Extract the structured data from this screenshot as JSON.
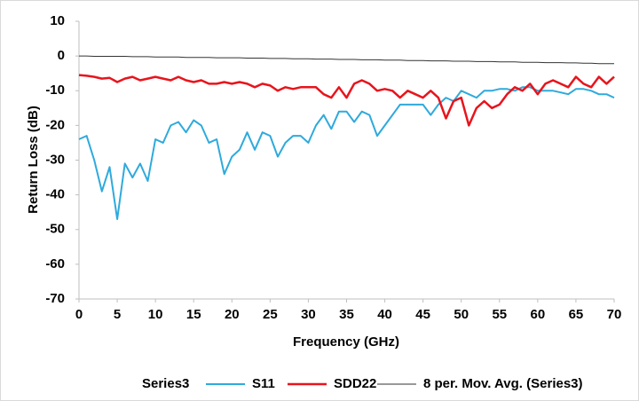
{
  "chart_data": {
    "type": "line",
    "xlabel": "Frequency (GHz)",
    "ylabel": "Return Loss (dB)",
    "x": [
      0,
      1,
      2,
      3,
      4,
      5,
      6,
      7,
      8,
      9,
      10,
      11,
      12,
      13,
      14,
      15,
      16,
      17,
      18,
      19,
      20,
      21,
      22,
      23,
      24,
      25,
      26,
      27,
      28,
      29,
      30,
      31,
      32,
      33,
      34,
      35,
      36,
      37,
      38,
      39,
      40,
      41,
      42,
      43,
      44,
      45,
      46,
      47,
      48,
      49,
      50,
      51,
      52,
      53,
      54,
      55,
      56,
      57,
      58,
      59,
      60,
      61,
      62,
      63,
      64,
      65,
      66,
      67,
      68,
      69,
      70
    ],
    "series": [
      {
        "name": "Series3",
        "color": "#ffffff",
        "width": 1,
        "values": [
          0,
          0.2,
          -0.3,
          0.1,
          -0.4,
          0.2,
          -0.2,
          -0.5,
          0.1,
          -0.3,
          -0.2,
          -0.6,
          0,
          -0.4,
          -0.3,
          -0.7,
          -0.2,
          -0.5,
          -0.6,
          -0.3,
          -0.8,
          -0.4,
          -0.6,
          -0.9,
          -0.5,
          -0.7,
          -1,
          -0.6,
          -0.8,
          -1.1,
          -0.7,
          -0.9,
          -1.2,
          -0.8,
          -1,
          -1.3,
          -0.9,
          -1.1,
          -1.4,
          -1,
          -1.2,
          -1.5,
          -1.1,
          -1.3,
          -1.6,
          -1.2,
          -1.4,
          -1.7,
          -1.3,
          -1.5,
          -1.8,
          -1.4,
          -1.6,
          -1.9,
          -1.5,
          -1.7,
          -2,
          -1.6,
          -1.8,
          -2.1,
          -1.7,
          -1.9,
          -2.2,
          -1.8,
          -2,
          -2.4,
          -1.9,
          -2.2,
          -2.6,
          -2,
          -2.3
        ]
      },
      {
        "name": "S11",
        "color": "#2eaadc",
        "width": 2,
        "values": [
          -24,
          -23,
          -30,
          -39,
          -32,
          -47,
          -31,
          -35,
          -31,
          -36,
          -24,
          -25,
          -20,
          -19,
          -22,
          -18.5,
          -20,
          -25,
          -24,
          -34,
          -29,
          -27,
          -22,
          -27,
          -22,
          -23,
          -29,
          -25,
          -23,
          -23,
          -25,
          -20,
          -17,
          -21,
          -16,
          -16,
          -19,
          -16,
          -17,
          -23,
          -20,
          -17,
          -14,
          -14,
          -14,
          -14,
          -17,
          -14,
          -12,
          -13,
          -10,
          -11,
          -12,
          -10,
          -10,
          -9.5,
          -9.5,
          -10,
          -9,
          -9,
          -10,
          -10,
          -10,
          -10.5,
          -11,
          -9.5,
          -9.5,
          -10,
          -11,
          -11,
          -12
        ]
      },
      {
        "name": "SDD22",
        "color": "#e8141c",
        "width": 2.5,
        "values": [
          -5.5,
          -5.7,
          -6,
          -6.5,
          -6.3,
          -7.5,
          -6.5,
          -6,
          -7,
          -6.5,
          -6,
          -6.5,
          -7,
          -6,
          -7,
          -7.5,
          -7,
          -8,
          -8,
          -7.5,
          -8,
          -7.5,
          -8,
          -9,
          -8,
          -8.5,
          -10,
          -9,
          -9.5,
          -9,
          -9,
          -9,
          -11,
          -12,
          -9,
          -12,
          -8,
          -7,
          -8,
          -10,
          -9.5,
          -10,
          -12,
          -10,
          -11,
          -12,
          -10,
          -12,
          -18,
          -13,
          -12,
          -20,
          -15,
          -13,
          -15,
          -14,
          -11,
          -9,
          -10,
          -8,
          -11,
          -8,
          -7,
          -8,
          -9,
          -6,
          -8,
          -9,
          -6,
          -8,
          -6
        ]
      },
      {
        "name": "8 per. Mov. Avg. (Series3)",
        "color": "#333333",
        "width": 1,
        "values": [
          0,
          0,
          -0.1,
          -0.1,
          -0.1,
          -0.1,
          -0.1,
          -0.2,
          -0.2,
          -0.2,
          -0.3,
          -0.3,
          -0.3,
          -0.3,
          -0.4,
          -0.4,
          -0.4,
          -0.4,
          -0.5,
          -0.5,
          -0.5,
          -0.5,
          -0.6,
          -0.6,
          -0.6,
          -0.7,
          -0.7,
          -0.7,
          -0.8,
          -0.8,
          -0.8,
          -0.9,
          -0.9,
          -0.9,
          -1,
          -1,
          -1,
          -1.1,
          -1.1,
          -1.1,
          -1.2,
          -1.2,
          -1.2,
          -1.3,
          -1.3,
          -1.3,
          -1.4,
          -1.4,
          -1.4,
          -1.5,
          -1.5,
          -1.5,
          -1.6,
          -1.6,
          -1.6,
          -1.7,
          -1.7,
          -1.7,
          -1.8,
          -1.8,
          -1.8,
          -1.9,
          -1.9,
          -1.9,
          -2,
          -2,
          -2.1,
          -2.1,
          -2.2,
          -2.2,
          -2.2
        ]
      }
    ],
    "xlim": [
      0,
      70
    ],
    "xticks": [
      0,
      5,
      10,
      15,
      20,
      25,
      30,
      35,
      40,
      45,
      50,
      55,
      60,
      65,
      70
    ],
    "ylim": [
      -70,
      10
    ],
    "yticks": [
      -70,
      -60,
      -50,
      -40,
      -30,
      -20,
      -10,
      0,
      10
    ],
    "grid": false,
    "legend": "bottom"
  }
}
